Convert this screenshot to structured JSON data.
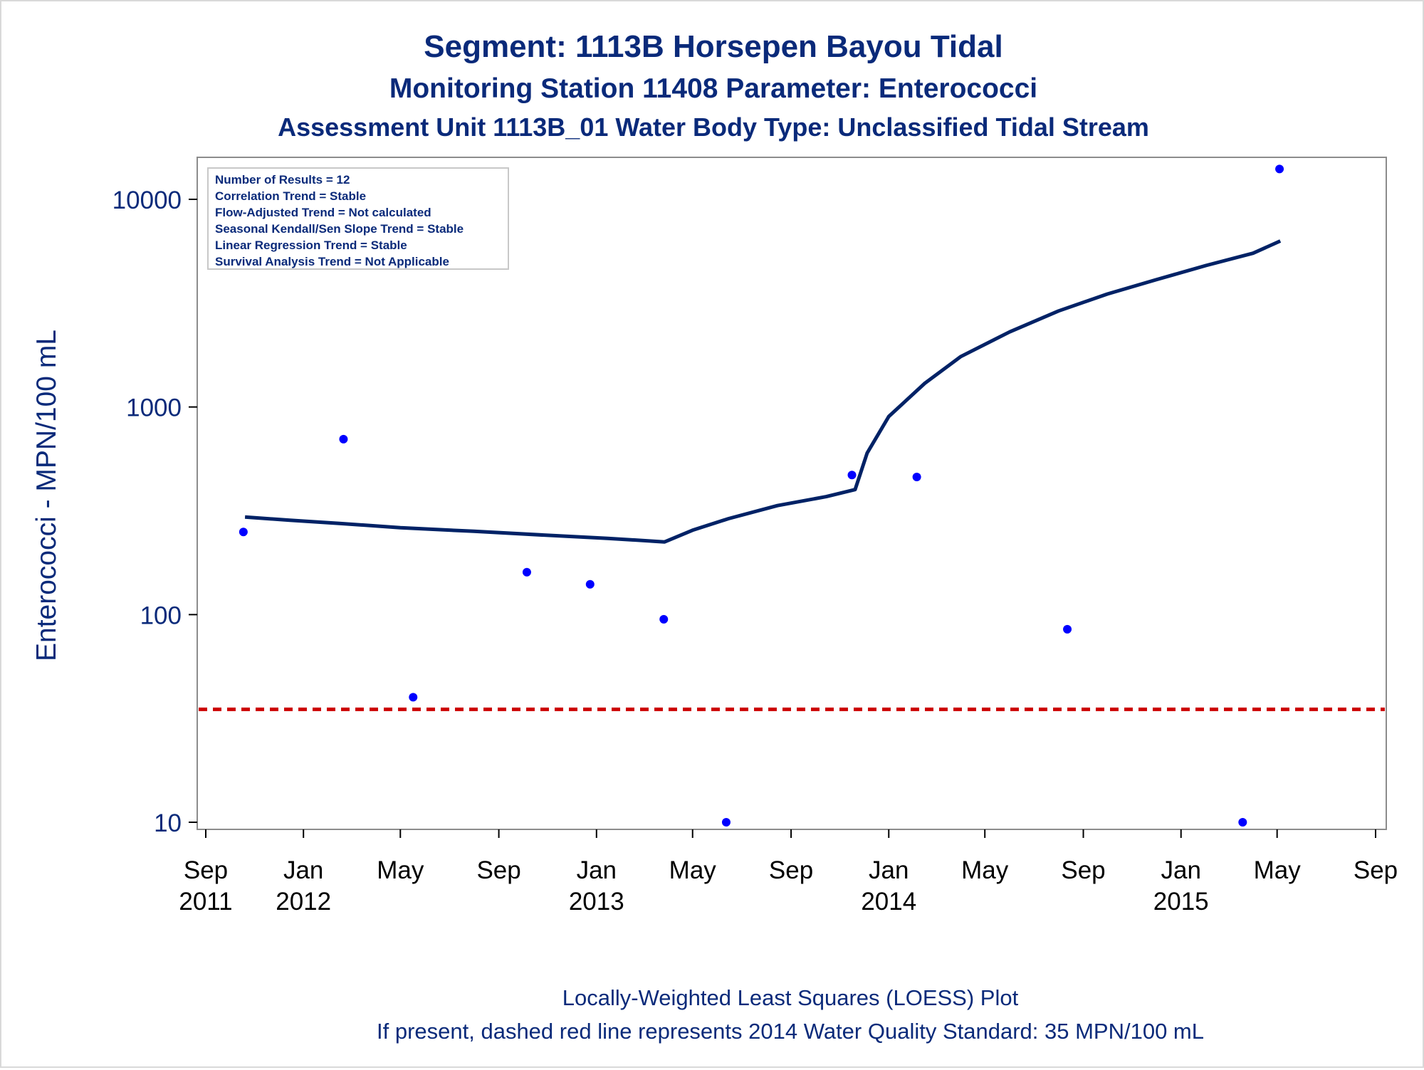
{
  "chart_data": {
    "type": "scatter",
    "title": "Segment: 1113B  Horsepen Bayou Tidal",
    "subtitle": "Monitoring Station 11408 Parameter: Enterococci",
    "subtitle2": "Assessment Unit 1113B_01   Water Body Type: Unclassified Tidal Stream",
    "ylabel": "Enterococci - MPN/100 mL",
    "xlabel": "",
    "yscale": "log",
    "ylim": [
      8.5,
      16000
    ],
    "xlim": [
      "2011-09-01",
      "2015-09-15"
    ],
    "grid": false,
    "y_ticks": [
      {
        "value": 10,
        "label": "10"
      },
      {
        "value": 100,
        "label": "100"
      },
      {
        "value": 1000,
        "label": "1000"
      },
      {
        "value": 10000,
        "label": "10000"
      }
    ],
    "x_ticks": [
      {
        "date": "2011-09-01",
        "label": "Sep",
        "year": "2011"
      },
      {
        "date": "2012-01-01",
        "label": "Jan",
        "year": "2012"
      },
      {
        "date": "2012-05-01",
        "label": "May",
        "year": ""
      },
      {
        "date": "2012-09-01",
        "label": "Sep",
        "year": ""
      },
      {
        "date": "2013-01-01",
        "label": "Jan",
        "year": "2013"
      },
      {
        "date": "2013-05-01",
        "label": "May",
        "year": ""
      },
      {
        "date": "2013-09-01",
        "label": "Sep",
        "year": ""
      },
      {
        "date": "2014-01-01",
        "label": "Jan",
        "year": "2014"
      },
      {
        "date": "2014-05-01",
        "label": "May",
        "year": ""
      },
      {
        "date": "2014-09-01",
        "label": "Sep",
        "year": ""
      },
      {
        "date": "2015-01-01",
        "label": "Jan",
        "year": "2015"
      },
      {
        "date": "2015-05-01",
        "label": "May",
        "year": ""
      },
      {
        "date": "2015-09-01",
        "label": "Sep",
        "year": ""
      }
    ],
    "series": [
      {
        "kind": "points",
        "color": "#0000ff",
        "points": [
          {
            "date": "2011-10-18",
            "value": 250
          },
          {
            "date": "2012-02-20",
            "value": 700
          },
          {
            "date": "2012-05-17",
            "value": 40
          },
          {
            "date": "2012-10-06",
            "value": 160
          },
          {
            "date": "2012-12-24",
            "value": 140
          },
          {
            "date": "2013-03-26",
            "value": 95
          },
          {
            "date": "2013-06-12",
            "value": 10
          },
          {
            "date": "2013-11-16",
            "value": 470
          },
          {
            "date": "2014-02-05",
            "value": 460
          },
          {
            "date": "2014-08-12",
            "value": 85
          },
          {
            "date": "2015-03-19",
            "value": 10
          },
          {
            "date": "2015-05-04",
            "value": 14000
          }
        ]
      },
      {
        "kind": "loess",
        "color": "#002266",
        "points": [
          {
            "date": "2011-10-20",
            "value": 295
          },
          {
            "date": "2011-12-15",
            "value": 285
          },
          {
            "date": "2012-02-15",
            "value": 275
          },
          {
            "date": "2012-05-01",
            "value": 262
          },
          {
            "date": "2012-08-01",
            "value": 252
          },
          {
            "date": "2012-11-01",
            "value": 241
          },
          {
            "date": "2013-01-15",
            "value": 233
          },
          {
            "date": "2013-03-27",
            "value": 224
          },
          {
            "date": "2013-05-01",
            "value": 255
          },
          {
            "date": "2013-06-15",
            "value": 290
          },
          {
            "date": "2013-08-15",
            "value": 335
          },
          {
            "date": "2013-10-15",
            "value": 370
          },
          {
            "date": "2013-11-20",
            "value": 400
          },
          {
            "date": "2013-12-05",
            "value": 600
          },
          {
            "date": "2014-01-01",
            "value": 900
          },
          {
            "date": "2014-02-15",
            "value": 1300
          },
          {
            "date": "2014-04-01",
            "value": 1750
          },
          {
            "date": "2014-06-01",
            "value": 2300
          },
          {
            "date": "2014-08-01",
            "value": 2900
          },
          {
            "date": "2014-10-01",
            "value": 3500
          },
          {
            "date": "2014-12-01",
            "value": 4100
          },
          {
            "date": "2015-02-01",
            "value": 4800
          },
          {
            "date": "2015-04-01",
            "value": 5500
          },
          {
            "date": "2015-05-05",
            "value": 6300
          }
        ]
      }
    ],
    "reference_line": {
      "value": 35,
      "color": "#cc0000",
      "style": "dashed"
    }
  },
  "stats_box": [
    "Number of Results = 12",
    "Correlation Trend = Stable",
    "Flow-Adjusted Trend = Not calculated",
    "Seasonal Kendall/Sen Slope Trend = Stable",
    "Linear Regression Trend = Stable",
    "Survival Analysis Trend = Not Applicable"
  ],
  "footnote": {
    "line1": "Locally-Weighted Least Squares (LOESS) Plot",
    "line2": "If present, dashed red line represents 2014 Water Quality Standard: 35 MPN/100 mL"
  },
  "colors": {
    "text": "#0a2a7a",
    "axis": "#8c8c8c",
    "tick_label": "#000000"
  }
}
